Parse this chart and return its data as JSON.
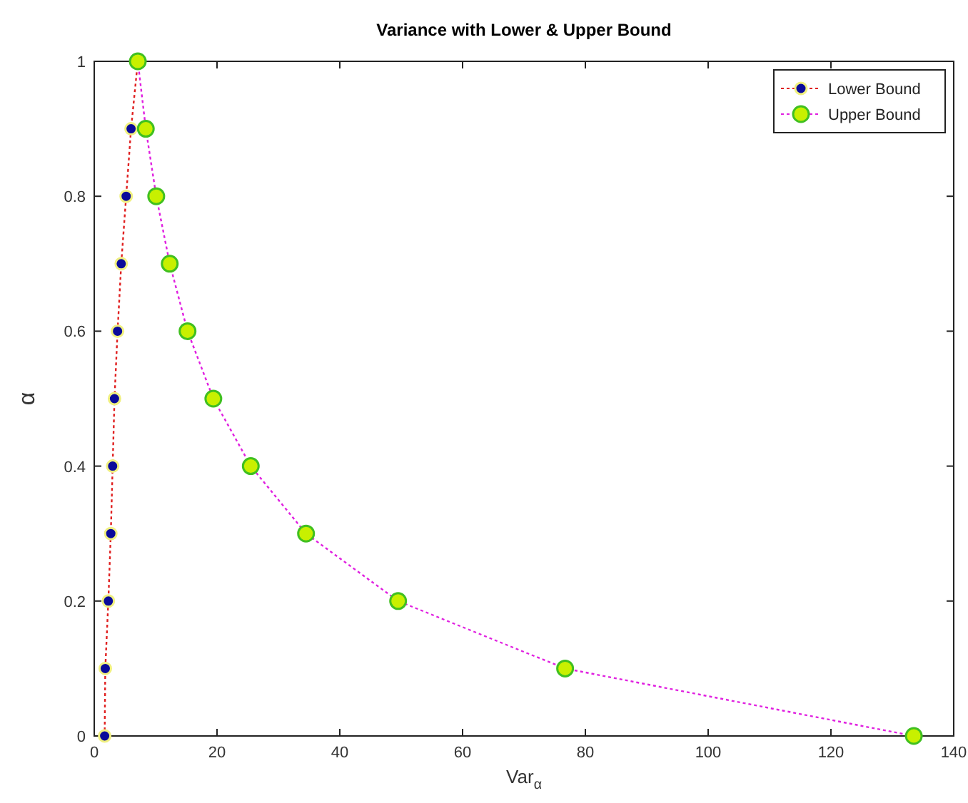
{
  "chart_data": {
    "type": "line",
    "title": "Variance with Lower & Upper Bound",
    "xlabel": "Var$_{α}$",
    "ylabel": "α",
    "xlim": [
      0,
      140
    ],
    "ylim": [
      0,
      1
    ],
    "xticks": [
      0,
      20,
      40,
      60,
      80,
      100,
      120,
      140
    ],
    "yticks": [
      0,
      0.2,
      0.4,
      0.6,
      0.8,
      1
    ],
    "grid": false,
    "legend": "top right",
    "marker": "circle",
    "line_style": "dotted",
    "series": [
      {
        "name": "Lower Bound",
        "color": "#0a0a9a",
        "x": [
          1.7,
          1.8,
          2.3,
          2.7,
          3.0,
          3.3,
          3.8,
          4.4,
          5.2,
          6.0,
          7.1
        ],
        "values": [
          0,
          0.1,
          0.2,
          0.3,
          0.4,
          0.5,
          0.6,
          0.7,
          0.8,
          0.9,
          1
        ]
      },
      {
        "name": "Upper Bound",
        "color": "#c8f000",
        "x": [
          133.5,
          76.7,
          49.5,
          34.5,
          25.5,
          19.4,
          15.2,
          12.3,
          10.1,
          8.4,
          7.1
        ],
        "values": [
          0,
          0.1,
          0.2,
          0.3,
          0.4,
          0.5,
          0.6,
          0.7,
          0.8,
          0.9,
          1
        ]
      }
    ]
  }
}
